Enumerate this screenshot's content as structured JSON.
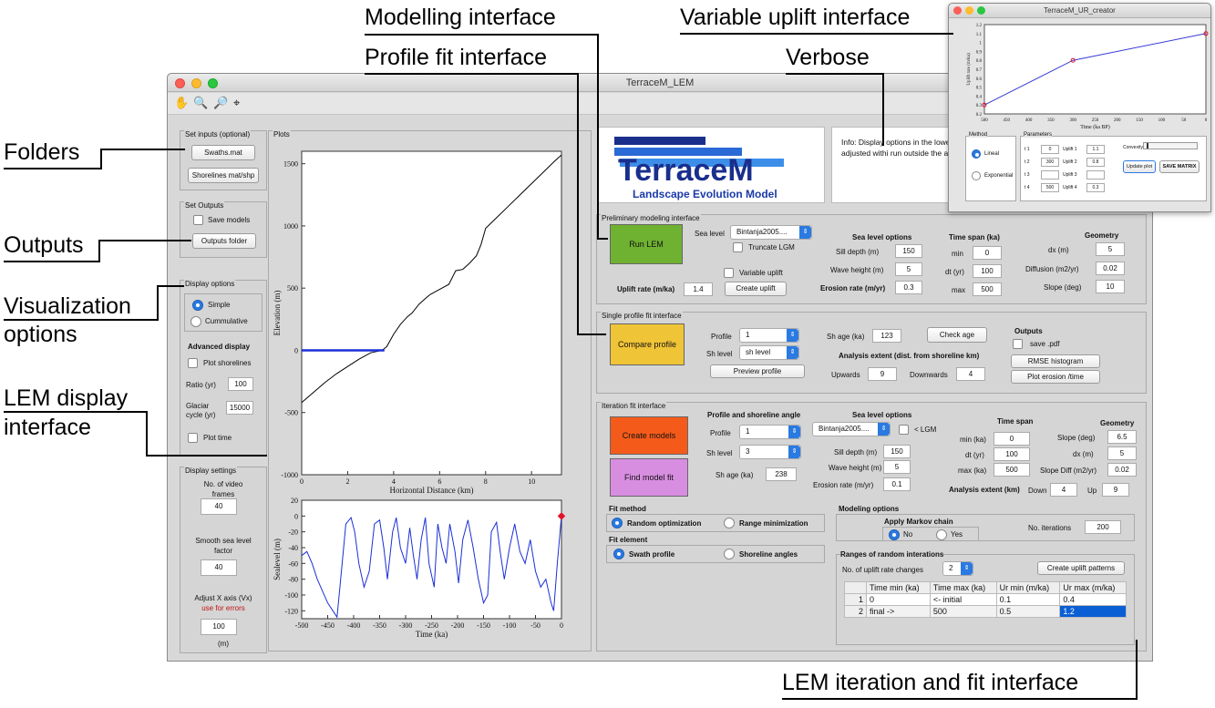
{
  "callouts": {
    "modelling": "Modelling interface",
    "profile_fit": "Profile fit interface",
    "verbose": "Verbose",
    "variable_uplift": "Variable uplift interface",
    "folders": "Folders",
    "outputs": "Outputs",
    "visualization": "Visualization\noptions",
    "lem_display": "LEM display\ninterface",
    "lem_iteration": "LEM iteration and fit interface"
  },
  "window": {
    "title": "TerraceM_LEM",
    "toolbar_icons": [
      "hand-icon",
      "zoom-in-icon",
      "zoom-out-icon",
      "data-cursor-icon"
    ]
  },
  "inputs": {
    "title": "Set inputs (optional)",
    "swaths_btn": "Swaths.mat",
    "shorelines_btn": "Shorelines mat/shp"
  },
  "outputs": {
    "title": "Set Outputs",
    "save_models": "Save models",
    "folder_btn": "Outputs folder"
  },
  "display": {
    "title": "Display options",
    "simple": "Simple",
    "cummulative": "Cummulative",
    "advanced": "Advanced display",
    "plot_shorelines": "Plot shorelines",
    "ratio_label": "Ratio (yr)",
    "ratio_value": "100",
    "glaciar_label": "Glaciar\ncycle (yr)",
    "glaciar_value": "15000",
    "plot_time": "Plot time"
  },
  "display_settings": {
    "title": "Display settings",
    "video_label": "No. of video\nframes",
    "video_value": "40",
    "smooth_label": "Smooth sea level\nfactor",
    "smooth_value": "40",
    "adjust_label": "Adjust X axis (Vx)",
    "adjust_note": "use for errors",
    "adjust_value": "100",
    "unit": "(m)"
  },
  "plots": {
    "title": "Plots"
  },
  "chart_data": [
    {
      "type": "line",
      "xlabel": "Horizontal Distance (km)",
      "ylabel": "Elevation (m)",
      "xlim": [
        0,
        11.3
      ],
      "ylim": [
        -1000,
        1600
      ],
      "xticks": [
        "0",
        "2",
        "4",
        "6",
        "8",
        "10"
      ],
      "yticks": [
        "1500",
        "1000",
        "500",
        "0",
        "-500",
        "-1000"
      ],
      "series": [
        {
          "color": "#000000",
          "x": [
            0,
            0.5,
            1,
            1.5,
            2,
            2.5,
            3,
            3.5,
            3.7,
            4.0,
            4.3,
            4.6,
            4.8,
            5.1,
            5.4,
            5.6,
            5.8,
            6.1,
            6.4,
            6.7,
            7.0,
            7.3,
            7.6,
            7.8,
            8.0,
            8.5,
            9,
            9.5,
            10,
            10.5,
            11.0,
            11.3
          ],
          "y": [
            -420,
            -340,
            -260,
            -190,
            -130,
            -70,
            -20,
            0,
            30,
            130,
            210,
            270,
            300,
            370,
            420,
            450,
            470,
            500,
            530,
            640,
            650,
            700,
            760,
            850,
            980,
            1070,
            1160,
            1250,
            1340,
            1430,
            1520,
            1570
          ]
        },
        {
          "color": "#1a2fd6",
          "x": [
            0,
            3.6
          ],
          "y": [
            0,
            0
          ]
        }
      ]
    },
    {
      "type": "line",
      "xlabel": "Time (ka)",
      "ylabel": "Sealevel (m)",
      "xlim": [
        -500,
        0
      ],
      "ylim": [
        -130,
        20
      ],
      "xticks": [
        "-500",
        "-450",
        "-400",
        "-350",
        "-300",
        "-250",
        "-200",
        "-150",
        "-100",
        "-50",
        "0"
      ],
      "yticks": [
        "20",
        "0",
        "-20",
        "-40",
        "-60",
        "-80",
        "-100",
        "-120"
      ],
      "series": [
        {
          "color": "#1a2fd6",
          "x": [
            -500,
            -490,
            -480,
            -470,
            -460,
            -450,
            -440,
            -432,
            -425,
            -415,
            -405,
            -398,
            -390,
            -380,
            -370,
            -360,
            -350,
            -342,
            -335,
            -325,
            -318,
            -310,
            -300,
            -292,
            -285,
            -278,
            -270,
            -262,
            -255,
            -245,
            -238,
            -230,
            -222,
            -215,
            -205,
            -198,
            -190,
            -180,
            -170,
            -160,
            -150,
            -142,
            -135,
            -125,
            -118,
            -110,
            -100,
            -90,
            -80,
            -70,
            -60,
            -50,
            -40,
            -30,
            -20,
            -15,
            -8,
            0
          ],
          "y": [
            -50,
            -45,
            -60,
            -80,
            -95,
            -110,
            -120,
            -128,
            -80,
            -10,
            -2,
            -20,
            -60,
            -90,
            -70,
            -10,
            -5,
            -40,
            -80,
            -20,
            -2,
            -40,
            -60,
            -15,
            -50,
            -80,
            -30,
            -2,
            -60,
            -90,
            -10,
            -40,
            -60,
            -10,
            -45,
            -85,
            -30,
            -5,
            -40,
            -80,
            -110,
            -100,
            -20,
            -8,
            -45,
            -80,
            -40,
            -10,
            -45,
            -60,
            -30,
            -70,
            -90,
            -80,
            -110,
            -120,
            -60,
            0
          ]
        }
      ],
      "marker": {
        "x": 0,
        "y": 0,
        "color": "#e0142a"
      }
    }
  ],
  "logo": {
    "brand": "TerraceM",
    "subtitle": "Landscape Evolution Model"
  },
  "verbose": {
    "text": "Info:   Display options in the lower frames and the smooth of the se parameters can be adjusted withi run outside the adjusted plot bou and the E0 is too high). The X ax"
  },
  "prelim": {
    "title": "Preliminary modeling interface",
    "run_btn": "Run LEM",
    "sea_level_label": "Sea level",
    "sea_level_value": "Bintanja2005....",
    "truncate": "Truncate LGM",
    "variable_uplift": "Variable uplift",
    "uplift_label": "Uplift rate (m/ka)",
    "uplift_value": "1.4",
    "create_uplift": "Create uplift",
    "sea_opts": "Sea level options",
    "sill_label": "Sill depth (m)",
    "sill_value": "150",
    "wave_label": "Wave height (m)",
    "wave_value": "5",
    "erosion_label": "Erosion rate (m/yr)",
    "erosion_value": "0.3",
    "timespan": "Time span (ka)",
    "min_label": "min",
    "min_value": "0",
    "dt_label": "dt (yr)",
    "dt_value": "100",
    "max_label": "max",
    "max_value": "500",
    "geometry": "Geometry",
    "dx_label": "dx (m)",
    "dx_value": "5",
    "diff_label": "Diffusion (m2/yr)",
    "diff_value": "0.02",
    "slope_label": "Slope (deg)",
    "slope_value": "10"
  },
  "single": {
    "title": "Single profile fit interface",
    "compare_btn": "Compare profile",
    "profile_label": "Profile",
    "profile_value": "1",
    "sh_level_label": "Sh level",
    "sh_level_value": "sh level",
    "preview_btn": "Preview profile",
    "sh_age_label": "Sh age (ka)",
    "sh_age_value": "123",
    "check_age": "Check age",
    "extent_label": "Analysis extent (dist. from shoreline km)",
    "upwards_label": "Upwards",
    "upwards_value": "9",
    "downwards_label": "Downwards",
    "downwards_value": "4",
    "outputs_label": "Outputs",
    "save_pdf": "save .pdf",
    "rmse_btn": "RMSE histogram",
    "plot_erosion_btn": "Plot erosion /time"
  },
  "iter": {
    "title": "Iteration fit interface",
    "create_models": "Create models",
    "find_fit": "Find model fit",
    "psa_label": "Profile and shoreline angle",
    "profile_label": "Profile",
    "profile_value": "1",
    "sh_level_label": "Sh level",
    "sh_level_value": "3",
    "sh_age_label": "Sh age (ka)",
    "sh_age_value": "238",
    "sea_opts": "Sea level options",
    "sea_value": "Bintanja2005....",
    "lgm": "< LGM",
    "sill_label": "Sill depth (m)",
    "sill_value": "150",
    "wave_label": "Wave height (m)",
    "wave_value": "5",
    "erosion_label": "Erosion rate (m/yr)",
    "erosion_value": "0.1",
    "timespan": "Time span",
    "min_label": "min (ka)",
    "min_value": "0",
    "dt_label": "dt (yr)",
    "dt_value": "100",
    "max_label": "max (ka)",
    "max_value": "500",
    "geometry": "Geometry",
    "slope_label": "Slope (deg)",
    "slope_value": "6.5",
    "dx_label": "dx (m)",
    "dx_value": "5",
    "slopediff_label": "Slope Diff (m2/yr)",
    "slopediff_value": "0.02",
    "extent_label": "Analysis extent (km)",
    "down_label": "Down",
    "down_value": "4",
    "up_label": "Up",
    "up_value": "9",
    "fit_method": "Fit method",
    "random_opt": "Random optimization",
    "range_min": "Range minimization",
    "fit_element": "Fit element",
    "swath": "Swath profile",
    "shoreline_angles": "Shoreline angles",
    "modeling_opts": "Modeling options",
    "markov": "Apply Markov chain",
    "no": "No",
    "yes": "Yes",
    "iterations_label": "No. iterations",
    "iterations_value": "200",
    "ranges_title": "Ranges of random interations",
    "uplift_changes_label": "No. of uplift rate changes",
    "uplift_changes_value": "2",
    "create_patterns": "Create uplift patterns",
    "table": {
      "headers": [
        "",
        "Time min (ka)",
        "Time max (ka)",
        "Ur min (m/ka)",
        "Ur max (m/ka)"
      ],
      "rows": [
        [
          "1",
          "0",
          "<- initial",
          "0.1",
          "0.4"
        ],
        [
          "2",
          "final ->",
          "500",
          "0.5",
          "1.2"
        ]
      ]
    }
  },
  "ur": {
    "title": "TerraceM_UR_creator",
    "ylabel": "Uplift rate (m/ka)",
    "xlabel": "Time (ka BP)",
    "xticks": [
      "500",
      "450",
      "400",
      "350",
      "300",
      "250",
      "200",
      "150",
      "100",
      "50",
      "0"
    ],
    "yticks": [
      "1.2",
      "1.1",
      "1",
      "0.9",
      "0.8",
      "0.7",
      "0.6",
      "0.5",
      "0.4",
      "0.3",
      "0.2"
    ],
    "method": "Method",
    "lineal": "Lineal",
    "exponential": "Exponential",
    "parameters": "Parameters",
    "t_labels": [
      "t 1",
      "t 2",
      "t 3",
      "t 4"
    ],
    "t_values": [
      "0",
      "300",
      "",
      "500"
    ],
    "u_labels": [
      "Uplift 1",
      "Uplift 2",
      "Uplift 3",
      "Uplift 4"
    ],
    "u_values": [
      "1.1",
      "0.8",
      "",
      "0.3"
    ],
    "convexity": "Convexity",
    "update": "Update plot",
    "save": "SAVE MATRIX"
  },
  "ur_chart": {
    "x": [
      500,
      300,
      0
    ],
    "y": [
      0.3,
      0.8,
      1.1
    ]
  }
}
